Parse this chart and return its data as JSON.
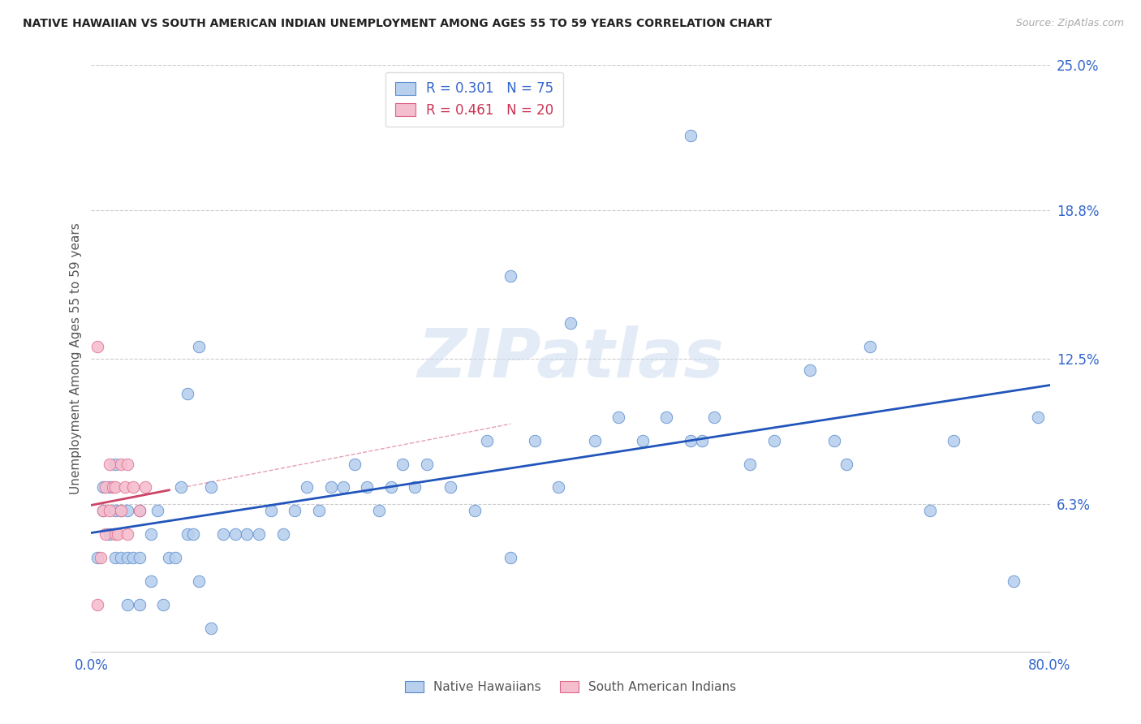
{
  "title": "NATIVE HAWAIIAN VS SOUTH AMERICAN INDIAN UNEMPLOYMENT AMONG AGES 55 TO 59 YEARS CORRELATION CHART",
  "source": "Source: ZipAtlas.com",
  "ylabel": "Unemployment Among Ages 55 to 59 years",
  "xlim": [
    0.0,
    0.8
  ],
  "ylim": [
    0.0,
    0.25
  ],
  "ytick_vals": [
    0.0,
    0.063,
    0.125,
    0.188,
    0.25
  ],
  "ytick_labels": [
    "",
    "6.3%",
    "12.5%",
    "18.8%",
    "25.0%"
  ],
  "nh_color": "#b8d0ee",
  "nh_edge_color": "#5588cc",
  "sai_color": "#f5bece",
  "sai_edge_color": "#dd6688",
  "nh_line_color": "#2255bb",
  "sai_line_color": "#cc4466",
  "nh_r": 0.301,
  "nh_n": 75,
  "sai_r": 0.461,
  "sai_n": 20,
  "watermark": "ZIPatlas",
  "nh_x": [
    0.005,
    0.01,
    0.01,
    0.015,
    0.015,
    0.02,
    0.02,
    0.02,
    0.025,
    0.025,
    0.03,
    0.03,
    0.03,
    0.035,
    0.04,
    0.04,
    0.04,
    0.05,
    0.05,
    0.055,
    0.06,
    0.065,
    0.07,
    0.075,
    0.08,
    0.085,
    0.09,
    0.1,
    0.1,
    0.11,
    0.12,
    0.13,
    0.14,
    0.15,
    0.16,
    0.17,
    0.18,
    0.19,
    0.2,
    0.21,
    0.22,
    0.23,
    0.24,
    0.25,
    0.26,
    0.27,
    0.28,
    0.3,
    0.32,
    0.33,
    0.35,
    0.37,
    0.39,
    0.4,
    0.42,
    0.44,
    0.46,
    0.48,
    0.5,
    0.51,
    0.52,
    0.55,
    0.57,
    0.6,
    0.62,
    0.63,
    0.65,
    0.7,
    0.72,
    0.77,
    0.79,
    0.08,
    0.09,
    0.35,
    0.5
  ],
  "nh_y": [
    0.04,
    0.06,
    0.07,
    0.05,
    0.07,
    0.04,
    0.06,
    0.08,
    0.04,
    0.06,
    0.02,
    0.04,
    0.06,
    0.04,
    0.02,
    0.04,
    0.06,
    0.03,
    0.05,
    0.06,
    0.02,
    0.04,
    0.04,
    0.07,
    0.05,
    0.05,
    0.03,
    0.01,
    0.07,
    0.05,
    0.05,
    0.05,
    0.05,
    0.06,
    0.05,
    0.06,
    0.07,
    0.06,
    0.07,
    0.07,
    0.08,
    0.07,
    0.06,
    0.07,
    0.08,
    0.07,
    0.08,
    0.07,
    0.06,
    0.09,
    0.04,
    0.09,
    0.07,
    0.14,
    0.09,
    0.1,
    0.09,
    0.1,
    0.09,
    0.09,
    0.1,
    0.08,
    0.09,
    0.12,
    0.09,
    0.08,
    0.13,
    0.06,
    0.09,
    0.03,
    0.1,
    0.11,
    0.13,
    0.16,
    0.22
  ],
  "sai_x": [
    0.005,
    0.008,
    0.01,
    0.012,
    0.012,
    0.015,
    0.015,
    0.018,
    0.02,
    0.02,
    0.022,
    0.025,
    0.025,
    0.028,
    0.03,
    0.03,
    0.035,
    0.04,
    0.045,
    0.005
  ],
  "sai_y": [
    0.02,
    0.04,
    0.06,
    0.05,
    0.07,
    0.06,
    0.08,
    0.07,
    0.05,
    0.07,
    0.05,
    0.06,
    0.08,
    0.07,
    0.05,
    0.08,
    0.07,
    0.06,
    0.07,
    0.13
  ]
}
